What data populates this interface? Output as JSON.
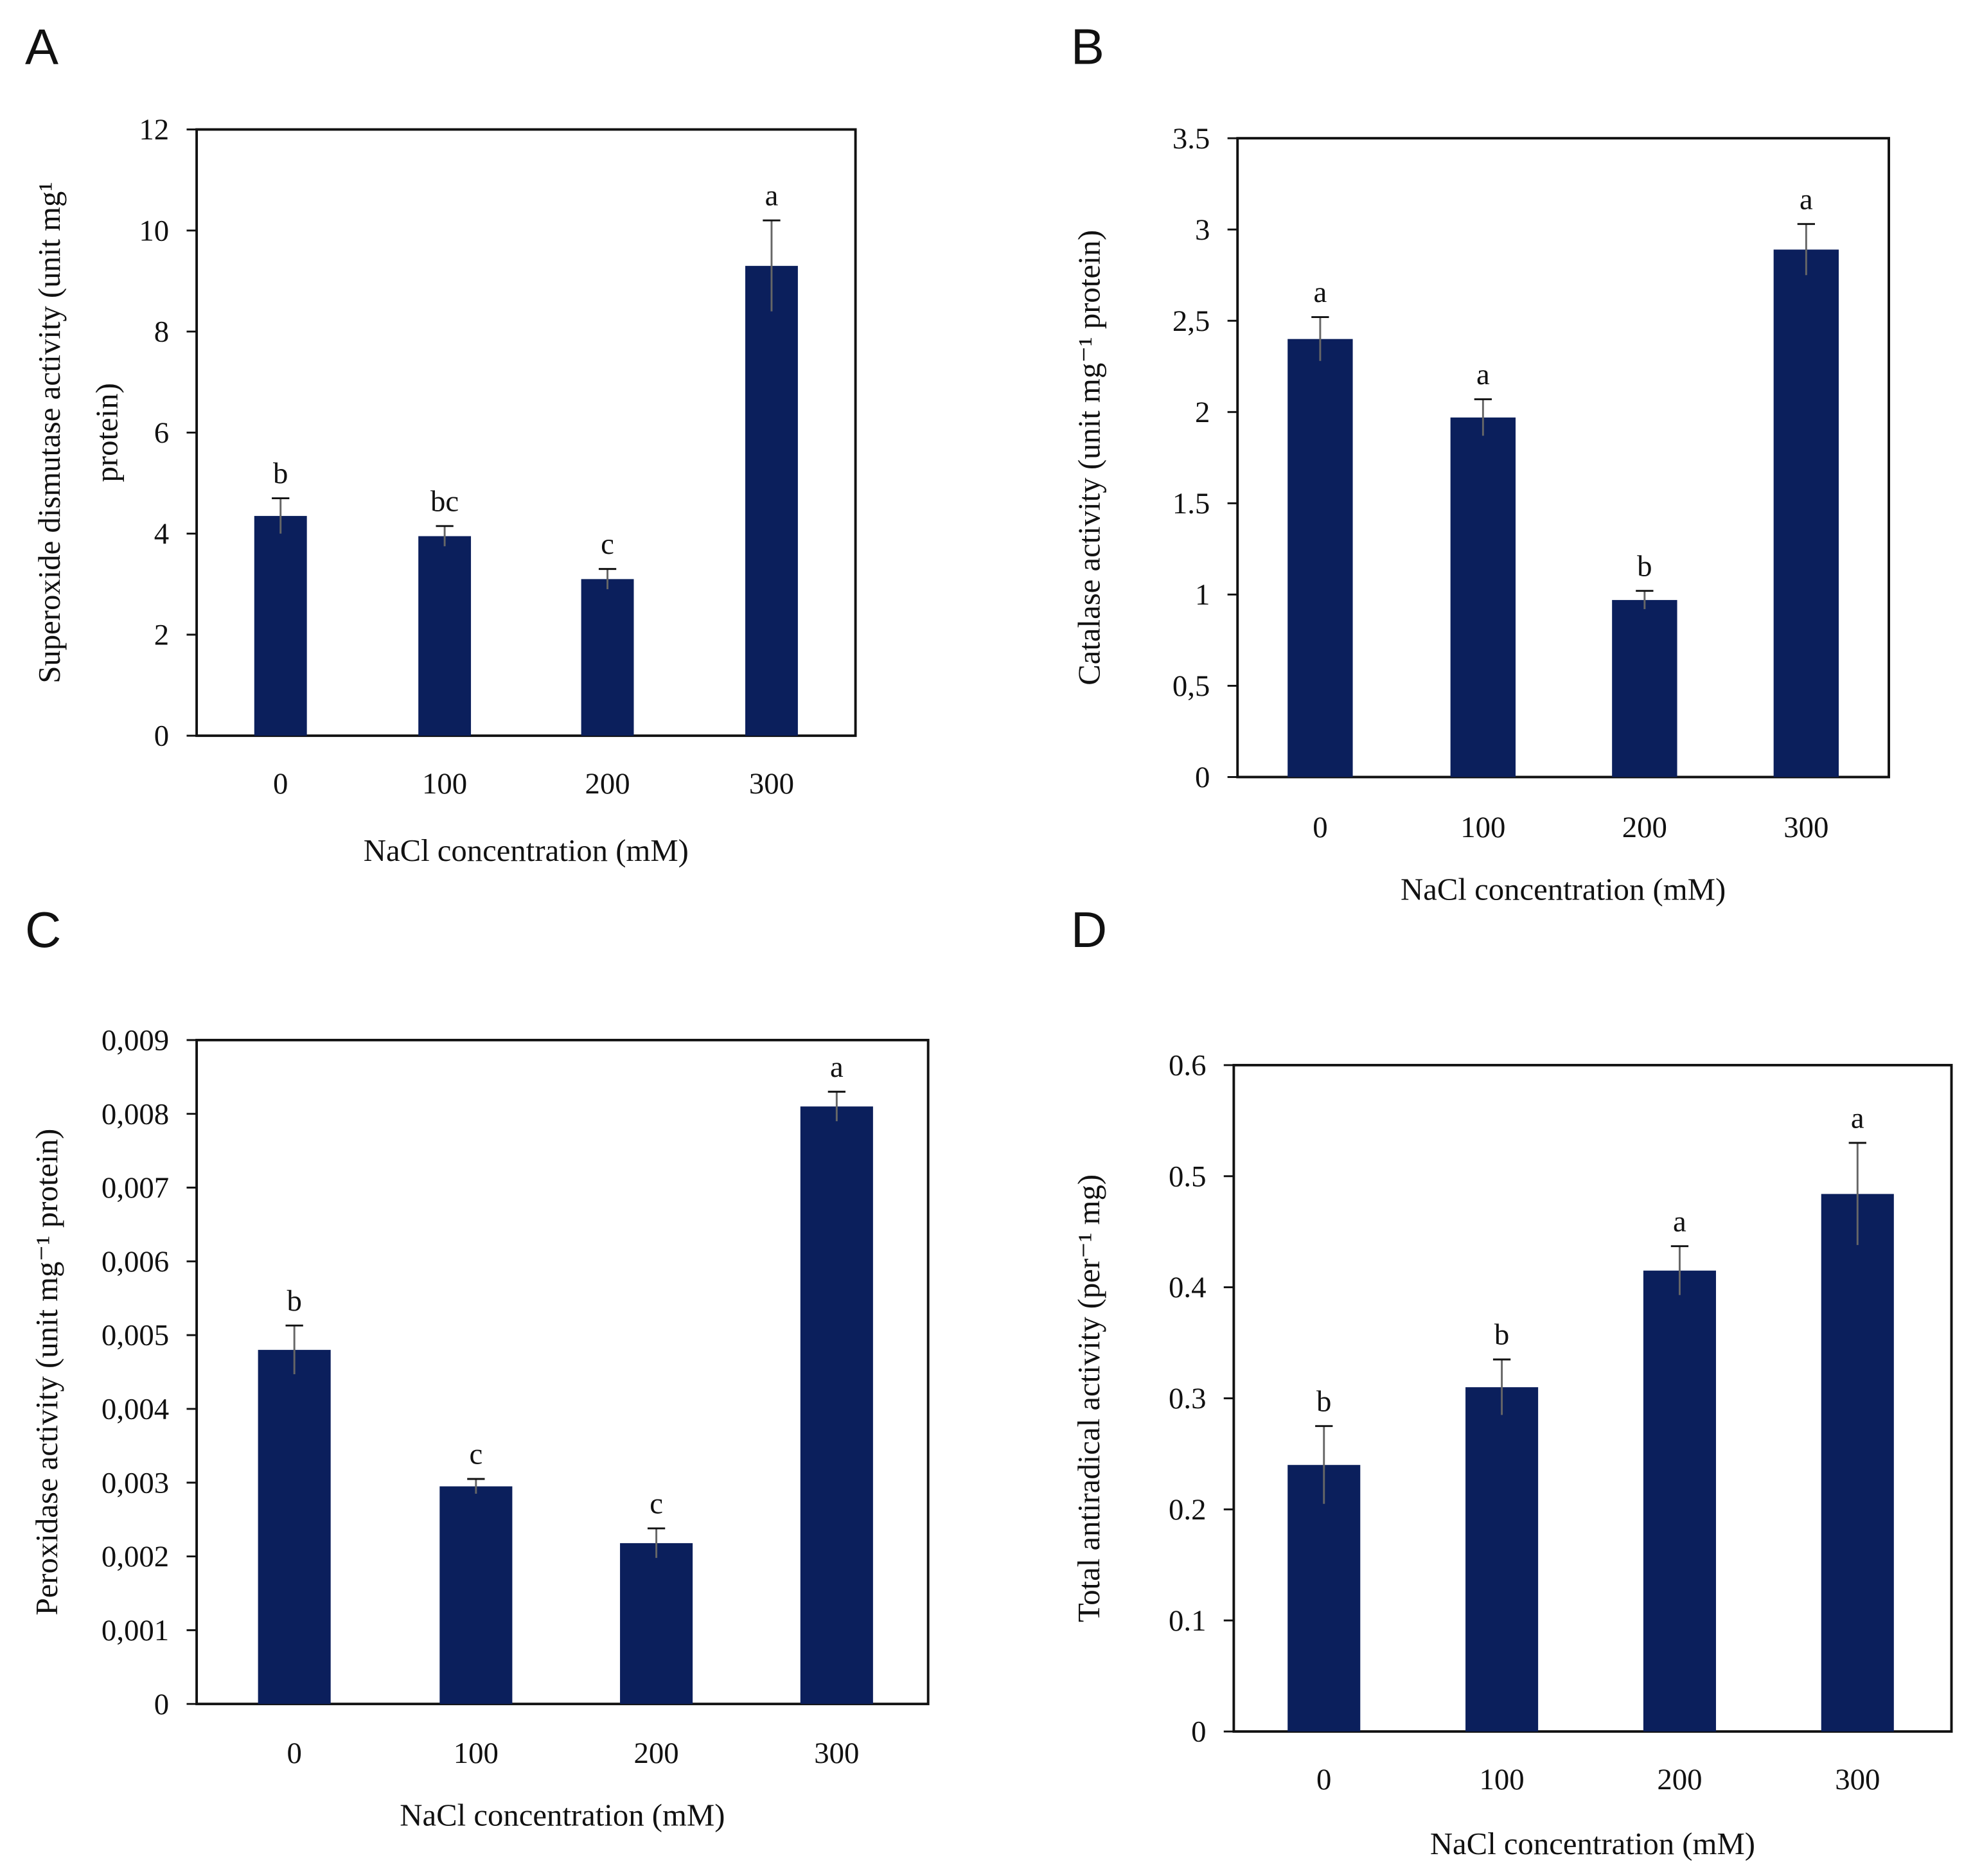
{
  "colors": {
    "bar": "#0b1f5c",
    "axis": "#111111",
    "error": "#666666"
  },
  "chart_data": [
    {
      "type": "bar",
      "panel": "A",
      "categories": [
        "0",
        "100",
        "200",
        "300"
      ],
      "values": [
        4.35,
        3.95,
        3.1,
        9.3
      ],
      "errors": [
        0.35,
        0.2,
        0.2,
        0.9
      ],
      "letters": [
        "b",
        "bc",
        "c",
        "a"
      ],
      "xlabel": "NaCl  concentration (mM)",
      "ylabel": [
        "Superoxide dismutase activity  (unit mg¹",
        "protein)"
      ],
      "ylim": [
        0,
        12
      ],
      "yticks": [
        0,
        2,
        4,
        6,
        8,
        10,
        12
      ],
      "ytick_labels": [
        "0",
        "2",
        "4",
        "6",
        "8",
        "10",
        "12"
      ]
    },
    {
      "type": "bar",
      "panel": "B",
      "categories": [
        "0",
        "100",
        "200",
        "300"
      ],
      "values": [
        2.4,
        1.97,
        0.97,
        2.89
      ],
      "errors": [
        0.12,
        0.1,
        0.05,
        0.14
      ],
      "letters": [
        "a",
        "a",
        "b",
        "a"
      ],
      "xlabel": "NaCl concentration (mM)",
      "ylabel": [
        "Catalase activity (unit mg⁻¹ protein)"
      ],
      "ylim": [
        0,
        3.5
      ],
      "yticks": [
        0,
        0.5,
        1,
        1.5,
        2,
        2.5,
        3,
        3.5
      ],
      "ytick_labels": [
        "0",
        "0,5",
        "1",
        "1.5",
        "2",
        "2,5",
        "3",
        "3.5"
      ]
    },
    {
      "type": "bar",
      "panel": "C",
      "categories": [
        "0",
        "100",
        "200",
        "300"
      ],
      "values": [
        0.0048,
        0.00295,
        0.00218,
        0.0081
      ],
      "errors": [
        0.00033,
        0.0001,
        0.0002,
        0.0002
      ],
      "letters": [
        "b",
        "c",
        "c",
        "a"
      ],
      "xlabel": "NaCl concentration (mM)",
      "ylabel": [
        "Peroxidase activity (unit mg⁻¹ protein)"
      ],
      "ylim": [
        0,
        0.009
      ],
      "yticks": [
        0,
        0.001,
        0.002,
        0.003,
        0.004,
        0.005,
        0.006,
        0.007,
        0.008,
        0.009
      ],
      "ytick_labels": [
        "0",
        "0,001",
        "0,002",
        "0,003",
        "0,004",
        "0,005",
        "0,006",
        "0,007",
        "0,008",
        "0,009"
      ]
    },
    {
      "type": "bar",
      "panel": "D",
      "categories": [
        "0",
        "100",
        "200",
        "300"
      ],
      "values": [
        0.24,
        0.31,
        0.415,
        0.484
      ],
      "errors": [
        0.035,
        0.025,
        0.022,
        0.046
      ],
      "letters": [
        "b",
        "b",
        "a",
        "a"
      ],
      "xlabel": "NaCl concentration (mM)",
      "ylabel": [
        "Total antiradical activity (per⁻¹ mg)"
      ],
      "ylim": [
        0,
        0.6
      ],
      "yticks": [
        0,
        0.1,
        0.2,
        0.3,
        0.4,
        0.5,
        0.6
      ],
      "ytick_labels": [
        "0",
        "0.1",
        "0.2",
        "0.3",
        "0.4",
        "0.5",
        "0.6"
      ]
    }
  ]
}
